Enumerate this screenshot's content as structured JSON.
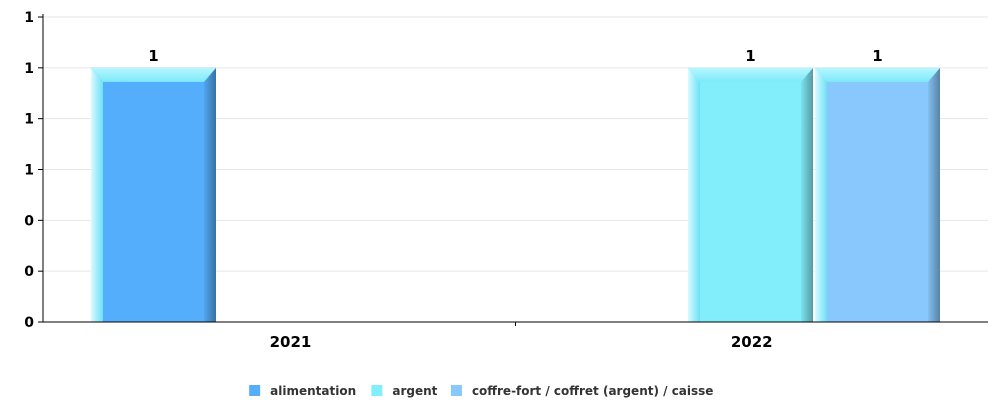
{
  "chart_data": {
    "type": "bar",
    "title": "",
    "xlabel": "",
    "ylabel": "",
    "categories": [
      "2021",
      "2022"
    ],
    "series": [
      {
        "name": "alimentation",
        "color": "#55aefc",
        "values": [
          1,
          null
        ]
      },
      {
        "name": "argent",
        "color": "#82eefc",
        "values": [
          null,
          1
        ]
      },
      {
        "name": "coffre-fort / coffret (argent) / caisse",
        "color": "#88c8fc",
        "values": [
          null,
          1
        ]
      }
    ],
    "ylim": [
      0,
      1.2
    ],
    "y_ticks": [
      {
        "value": 0,
        "label": "0"
      },
      {
        "value": 0.2,
        "label": "0"
      },
      {
        "value": 0.4,
        "label": "0"
      },
      {
        "value": 0.6,
        "label": "1"
      },
      {
        "value": 0.8,
        "label": "1"
      },
      {
        "value": 1.0,
        "label": "1"
      },
      {
        "value": 1.2,
        "label": "1"
      }
    ],
    "data_labels": [
      {
        "series": 0,
        "category": 0,
        "text": "1"
      },
      {
        "series": 1,
        "category": 1,
        "text": "1"
      },
      {
        "series": 2,
        "category": 1,
        "text": "1"
      }
    ],
    "grid": true,
    "legend_position": "bottom-center"
  }
}
